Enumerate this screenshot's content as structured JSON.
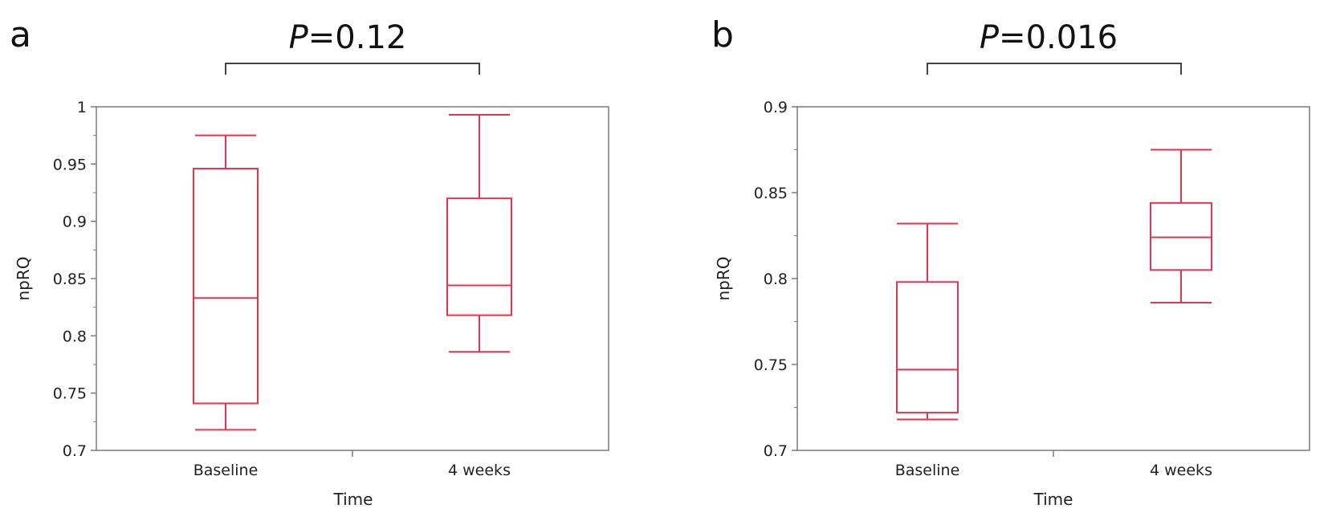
{
  "colors": {
    "box": "#e8334f",
    "axis": "#7a7a7a",
    "bracket": "#444444",
    "text": "#222222"
  },
  "chart_data": [
    {
      "panel": "a",
      "type": "box",
      "title": "",
      "annotation": {
        "p_label": "P",
        "p_value": "=0.12"
      },
      "xlabel": "Time",
      "ylabel": "npRQ",
      "categories": [
        "Baseline",
        "4 weeks"
      ],
      "ylim": [
        0.7,
        1.0
      ],
      "y_ticks": [
        0.7,
        0.75,
        0.8,
        0.85,
        0.9,
        0.95,
        1.0
      ],
      "y_tick_labels": [
        "0.7",
        "0.75",
        "0.8",
        "0.85",
        "0.9",
        "0.95",
        "1"
      ],
      "grid": false,
      "boxes": [
        {
          "category": "Baseline",
          "whisker_low": 0.718,
          "q1": 0.741,
          "median": 0.833,
          "q3": 0.946,
          "whisker_high": 0.975
        },
        {
          "category": "4 weeks",
          "whisker_low": 0.786,
          "q1": 0.818,
          "median": 0.844,
          "q3": 0.92,
          "whisker_high": 0.993
        }
      ]
    },
    {
      "panel": "b",
      "type": "box",
      "title": "",
      "annotation": {
        "p_label": "P",
        "p_value": "=0.016"
      },
      "xlabel": "Time",
      "ylabel": "npRQ",
      "categories": [
        "Baseline",
        "4 weeks"
      ],
      "ylim": [
        0.7,
        0.9
      ],
      "y_ticks": [
        0.7,
        0.75,
        0.8,
        0.85,
        0.9
      ],
      "y_tick_labels": [
        "0.7",
        "0.75",
        "0.8",
        "0.85",
        "0.9"
      ],
      "grid": false,
      "boxes": [
        {
          "category": "Baseline",
          "whisker_low": 0.718,
          "q1": 0.722,
          "median": 0.747,
          "q3": 0.798,
          "whisker_high": 0.832
        },
        {
          "category": "4 weeks",
          "whisker_low": 0.786,
          "q1": 0.805,
          "median": 0.824,
          "q3": 0.844,
          "whisker_high": 0.875
        }
      ]
    }
  ]
}
